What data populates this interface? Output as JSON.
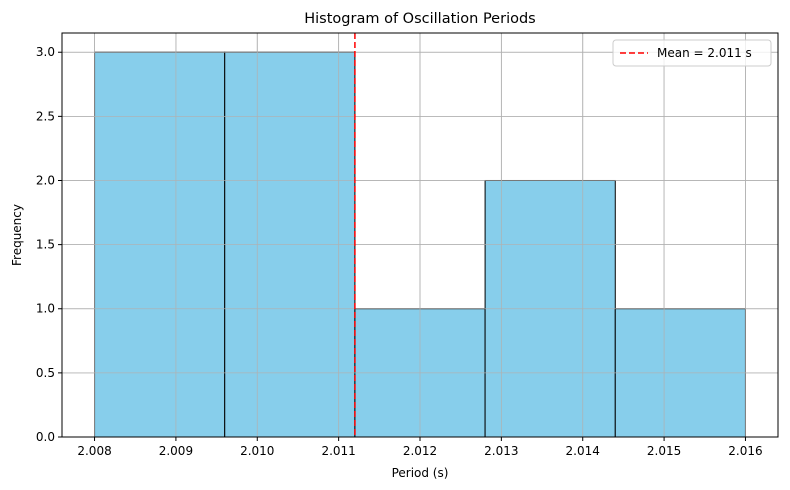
{
  "chart_data": {
    "type": "bar",
    "title": "Histogram of Oscillation Periods",
    "xlabel": "Period (s)",
    "ylabel": "Frequency",
    "bins": [
      {
        "start": 2.008,
        "end": 2.0096,
        "count": 3
      },
      {
        "start": 2.0096,
        "end": 2.0112,
        "count": 3
      },
      {
        "start": 2.0112,
        "end": 2.0128,
        "count": 1
      },
      {
        "start": 2.0128,
        "end": 2.0144,
        "count": 2
      },
      {
        "start": 2.0144,
        "end": 2.016,
        "count": 1
      }
    ],
    "mean_line": {
      "value": 2.0112,
      "label": "Mean = 2.011 s",
      "color": "#ff0000",
      "style": "dashed"
    },
    "xlim": [
      2.0076,
      2.0164
    ],
    "ylim": [
      0,
      3.15
    ],
    "xticks": [
      2.008,
      2.009,
      2.01,
      2.011,
      2.012,
      2.013,
      2.014,
      2.015,
      2.016
    ],
    "xtick_labels": [
      "2.008",
      "2.009",
      "2.010",
      "2.011",
      "2.012",
      "2.013",
      "2.014",
      "2.015",
      "2.016"
    ],
    "yticks": [
      0,
      0.5,
      1.0,
      1.5,
      2.0,
      2.5,
      3.0
    ],
    "ytick_labels": [
      "0.0",
      "0.5",
      "1.0",
      "1.5",
      "2.0",
      "2.5",
      "3.0"
    ],
    "bar_color": "#87ceeb",
    "edge_color": "#000000",
    "grid": true,
    "legend_position": "top-right"
  }
}
